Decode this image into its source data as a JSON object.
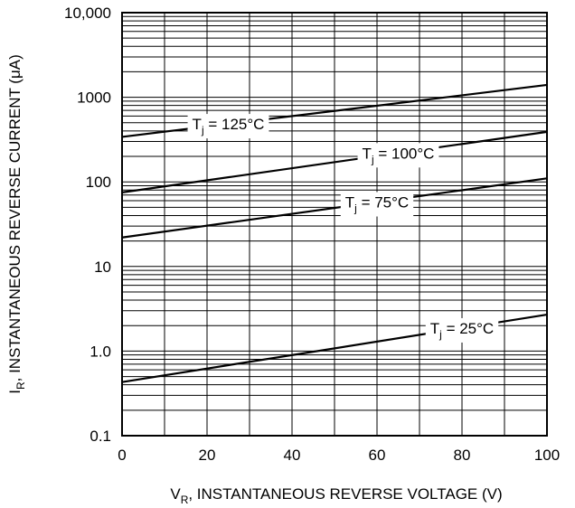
{
  "chart_data": {
    "type": "line",
    "title": "",
    "xlabel": {
      "main": "V",
      "sub": "R",
      "rest": ", INSTANTANEOUS REVERSE VOLTAGE (V)"
    },
    "ylabel": {
      "main": "I",
      "sub": "R",
      "rest": ", INSTANTANEOUS REVERSE CURRENT (μA)"
    },
    "x_ticks": [
      {
        "value": 0,
        "label": "0"
      },
      {
        "value": 20,
        "label": "20"
      },
      {
        "value": 40,
        "label": "40"
      },
      {
        "value": 60,
        "label": "60"
      },
      {
        "value": 80,
        "label": "80"
      },
      {
        "value": 100,
        "label": "100"
      }
    ],
    "y_ticks": [
      {
        "value": 0.1,
        "label": "0.1"
      },
      {
        "value": 1,
        "label": "1.0"
      },
      {
        "value": 10,
        "label": "10"
      },
      {
        "value": 100,
        "label": "100"
      },
      {
        "value": 1000,
        "label": "1000"
      },
      {
        "value": 10000,
        "label": "10,000"
      }
    ],
    "xlim": [
      0,
      100
    ],
    "ylim": [
      0.1,
      10000
    ],
    "y_scale": "log",
    "grid": true,
    "series": [
      {
        "label": {
          "pre": "T",
          "sub": "j",
          "post": " = 125°C"
        },
        "x": [
          0,
          100
        ],
        "y": [
          340,
          1400
        ],
        "label_at": 25
      },
      {
        "label": {
          "pre": "T",
          "sub": "j",
          "post": " = 100°C"
        },
        "x": [
          0,
          100
        ],
        "y": [
          75,
          390
        ],
        "label_at": 65
      },
      {
        "label": {
          "pre": "T",
          "sub": "j",
          "post": " = 75°C"
        },
        "x": [
          0,
          100
        ],
        "y": [
          22,
          110
        ],
        "label_at": 60
      },
      {
        "label": {
          "pre": "T",
          "sub": "j",
          "post": " = 25°C"
        },
        "x": [
          0,
          100
        ],
        "y": [
          0.43,
          2.7
        ],
        "label_at": 80
      }
    ]
  }
}
